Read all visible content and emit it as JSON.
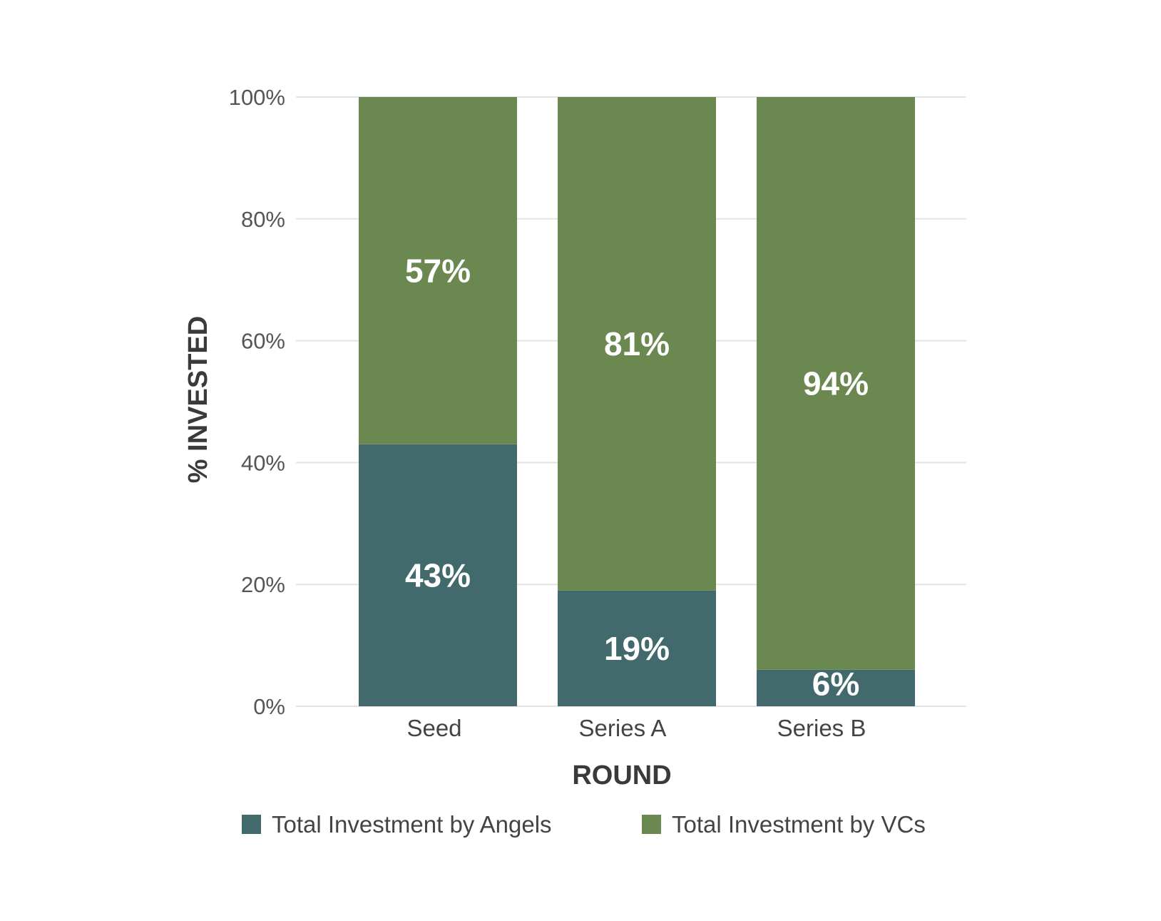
{
  "chart_data": {
    "type": "bar",
    "stacked": true,
    "categories": [
      "Seed",
      "Series A",
      "Series B"
    ],
    "series": [
      {
        "name": "Total Investment by Angels",
        "values": [
          43,
          19,
          6
        ],
        "labels": [
          "43%",
          "19%",
          "6%"
        ],
        "color": "#426a6d"
      },
      {
        "name": "Total Investment by VCs",
        "values": [
          57,
          81,
          94
        ],
        "labels": [
          "57%",
          "81%",
          "94%"
        ],
        "color": "#6a884f"
      }
    ],
    "xlabel": "ROUND",
    "ylabel": "% INVESTED",
    "ylim": [
      0,
      100
    ],
    "yticks": [
      0,
      20,
      40,
      60,
      80,
      100
    ],
    "ytick_labels": [
      "0%",
      "20%",
      "40%",
      "60%",
      "80%",
      "100%"
    ],
    "grid": true,
    "legend_position": "bottom"
  }
}
